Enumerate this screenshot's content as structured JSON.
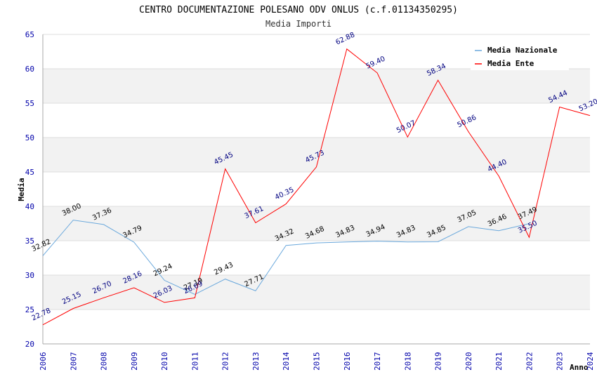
{
  "chart_data": {
    "type": "line",
    "title": "CENTRO DOCUMENTAZIONE POLESANO ODV ONLUS (c.f.01134350295)",
    "subtitle": "Media Importi",
    "ylabel": "Media",
    "xlabel": "Anno",
    "ylim": [
      20,
      65
    ],
    "yticks": [
      "20",
      "25",
      "30",
      "35",
      "40",
      "45",
      "50",
      "55",
      "60",
      "65"
    ],
    "categories": [
      "2006",
      "2007",
      "2008",
      "2009",
      "2010",
      "2011",
      "2012",
      "2013",
      "2014",
      "2015",
      "2016",
      "2017",
      "2018",
      "2019",
      "2020",
      "2021",
      "2022",
      "2023",
      "2024"
    ],
    "series": [
      {
        "name": "Media Nazionale",
        "color": "#6aa8dc",
        "label_color": "#000000",
        "values": [
          32.82,
          38.0,
          37.36,
          34.79,
          29.24,
          27.19,
          29.43,
          27.71,
          34.32,
          34.68,
          34.83,
          34.94,
          34.83,
          34.85,
          37.05,
          36.46,
          37.49,
          null,
          null
        ],
        "labels": [
          "32.82",
          "38.00",
          "37.36",
          "34.79",
          "29.24",
          "27.19",
          "29.43",
          "27.71",
          "34.32",
          "34.68",
          "34.83",
          "34.94",
          "34.83",
          "34.85",
          "37.05",
          "36.46",
          "37.49",
          "",
          ""
        ]
      },
      {
        "name": "Media Ente",
        "color": "#ff0000",
        "label_color": "#000080",
        "values": [
          22.78,
          25.15,
          26.7,
          28.16,
          26.03,
          26.69,
          45.45,
          37.61,
          40.35,
          45.73,
          62.88,
          59.4,
          50.07,
          58.34,
          50.86,
          44.4,
          35.5,
          54.44,
          53.2
        ],
        "labels": [
          "22.78",
          "25.15",
          "26.70",
          "28.16",
          "26.03",
          "26.69",
          "45.45",
          "37.61",
          "40.35",
          "45.73",
          "62.88",
          "59.40",
          "50.07",
          "58.34",
          "50.86",
          "44.40",
          "35.50",
          "54.44",
          "53.20"
        ]
      }
    ],
    "colors": {
      "band": "#f2f2f2",
      "grid": "#dddddd",
      "axis": "#aaaaaa"
    }
  }
}
